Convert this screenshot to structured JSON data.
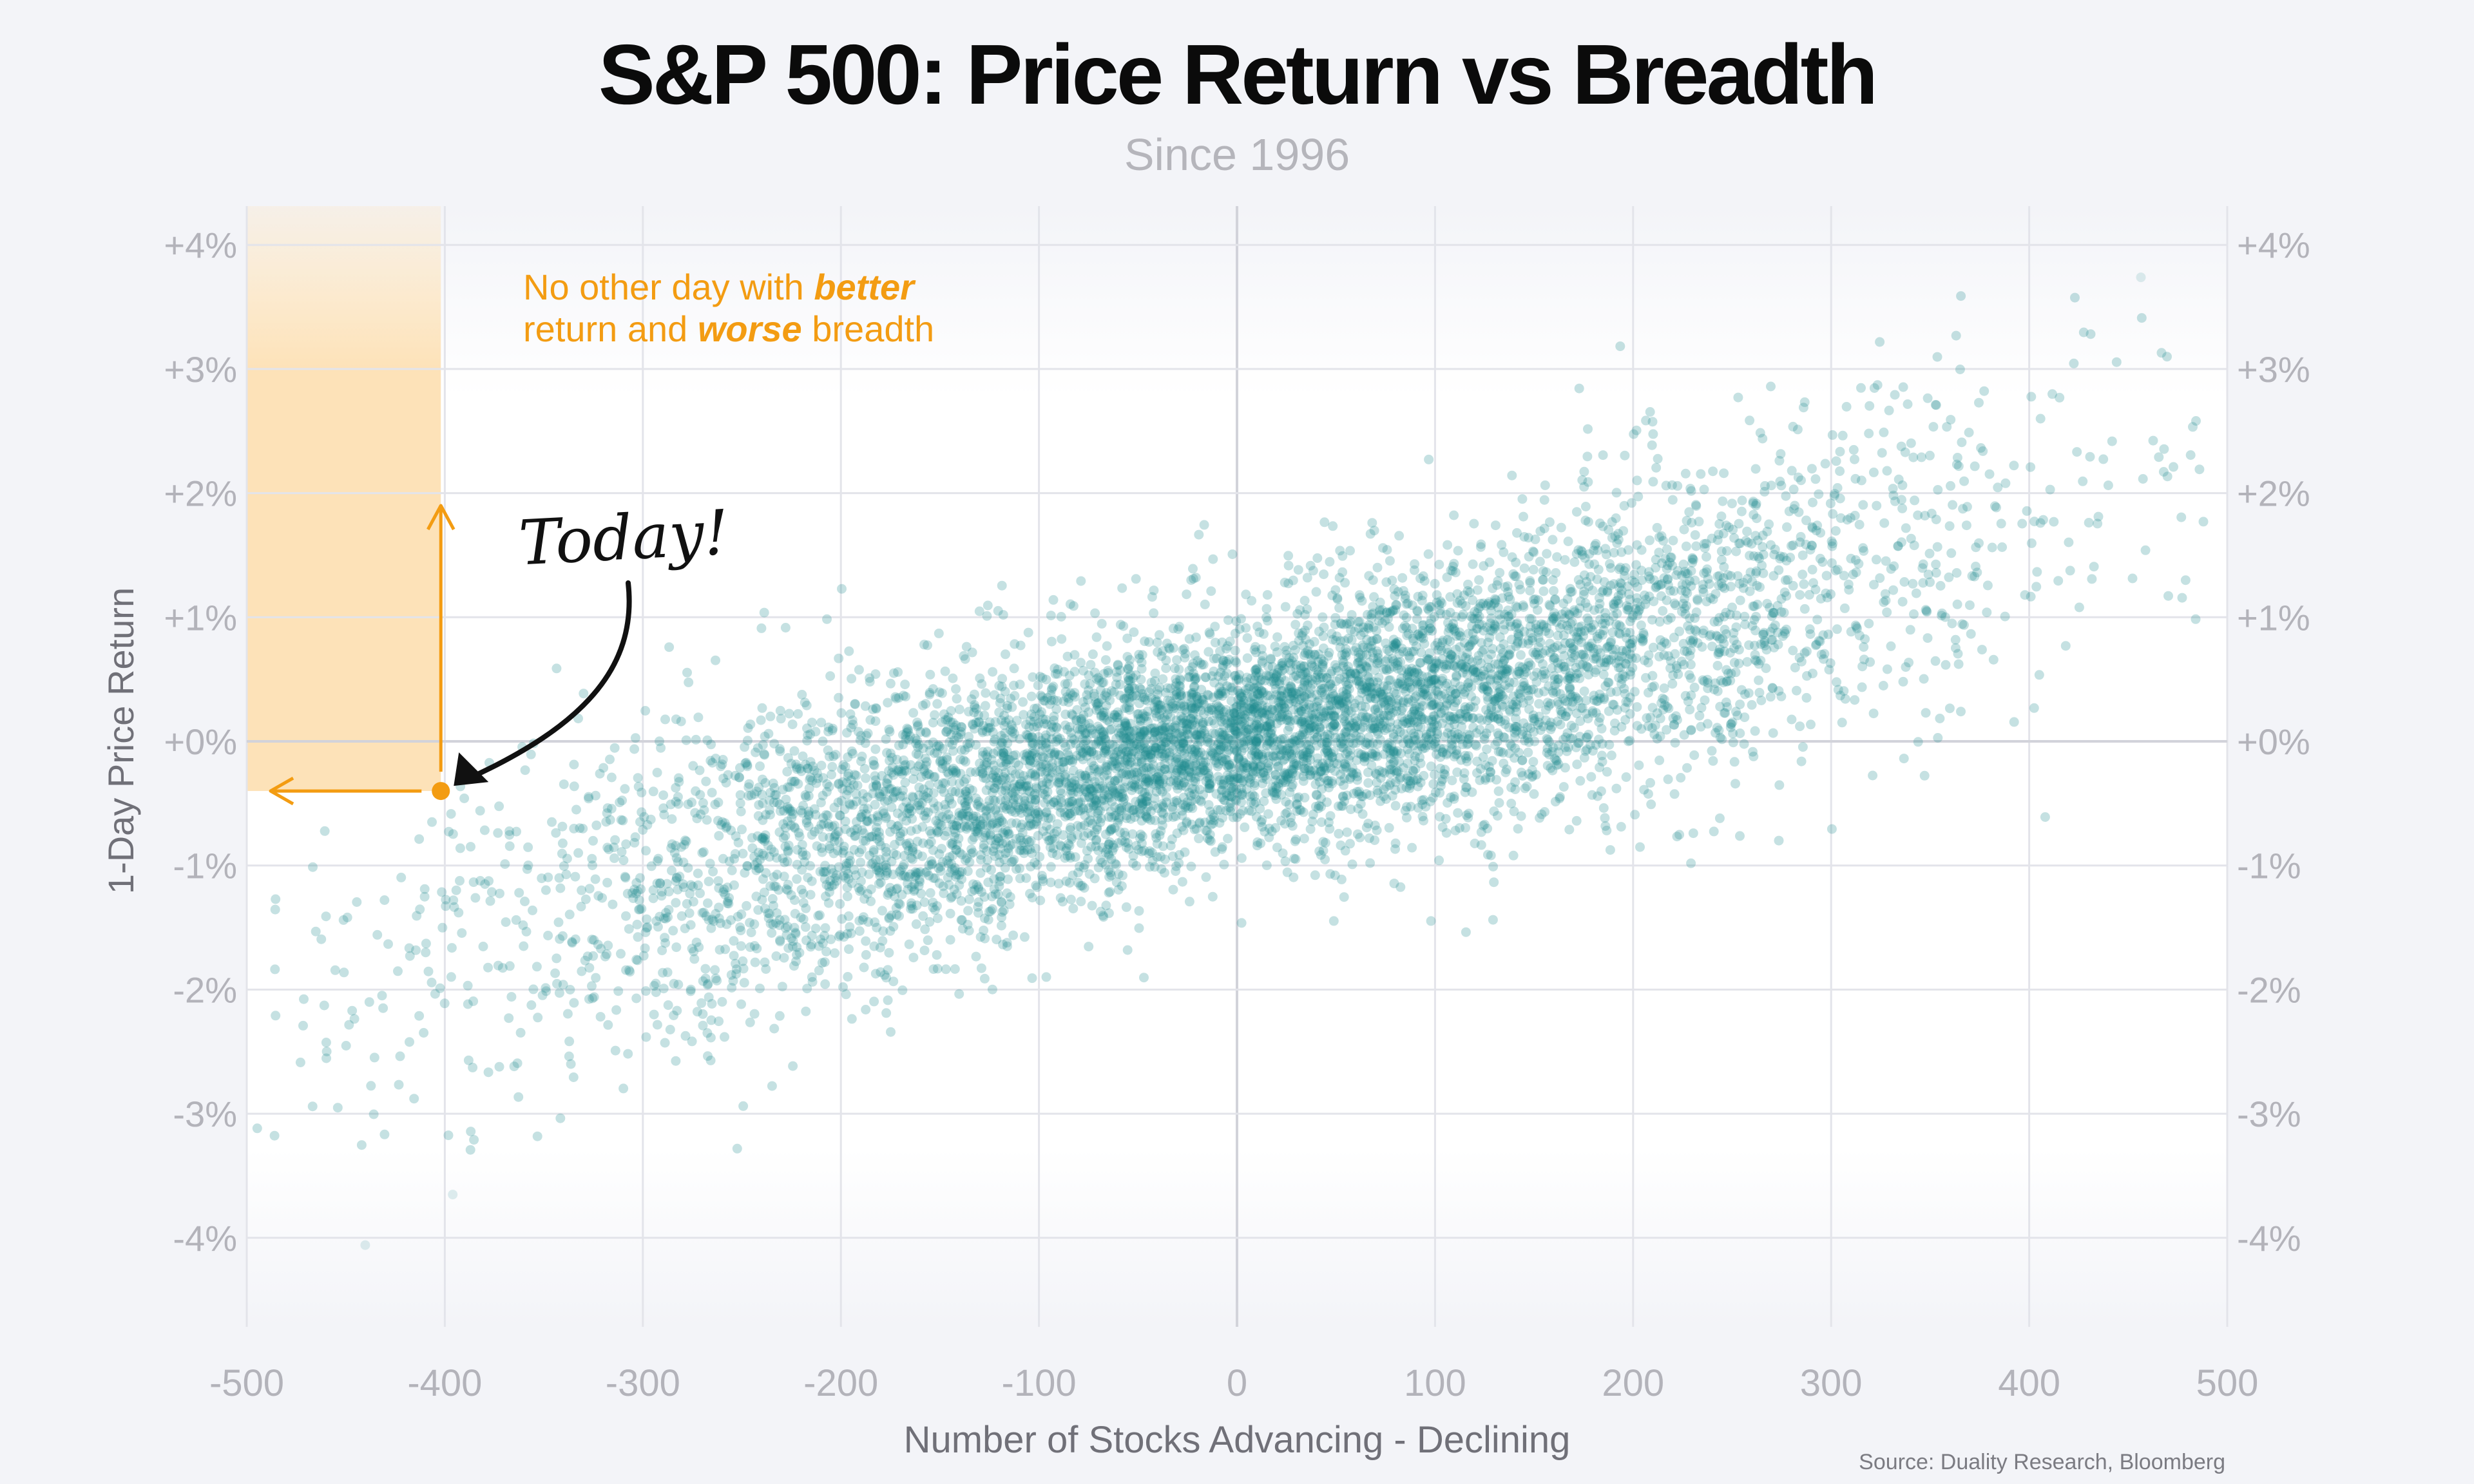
{
  "title": "S&P 500: Price Return vs Breadth",
  "subtitle": "Since 1996",
  "source": "Source: Duality Research, Bloomberg",
  "colors": {
    "points": "#1d8a8f",
    "highlight": "#f39c12",
    "shade": "#fde2b8",
    "grid": "#e3e4ea",
    "zero_line": "#d2d3da",
    "tick_text": "#b3b3ba",
    "axis_label": "#707078"
  },
  "annotation": {
    "callout_line1": "No other day with ",
    "callout_bold1": "better",
    "callout_line2_start": "return and ",
    "callout_bold2": "worse",
    "callout_line2_end": " breadth",
    "today_label": "Today!"
  },
  "chart_data": {
    "type": "scatter",
    "title": "S&P 500: Price Return vs Breadth",
    "subtitle": "Since 1996",
    "xlabel": "Number of Stocks Advancing - Declining",
    "ylabel": "1-Day Price Return",
    "xlim": [
      -500,
      500
    ],
    "ylim": [
      -4.6,
      4.3
    ],
    "x_ticks": [
      -500,
      -400,
      -300,
      -200,
      -100,
      0,
      100,
      200,
      300,
      400,
      500
    ],
    "x_tick_labels": [
      "-500",
      "-400",
      "-300",
      "-200",
      "-100",
      "0",
      "100",
      "200",
      "300",
      "400",
      "500"
    ],
    "y_ticks": [
      4,
      3,
      2,
      1,
      0,
      -1,
      -2,
      -3,
      -4
    ],
    "y_tick_labels": [
      "+4%",
      "+3%",
      "+2%",
      "+1%",
      "+0%",
      "-1%",
      "-2%",
      "-3%",
      "-4%"
    ],
    "y_tick_labels_right": [
      "+4%",
      "+3%",
      "+2%",
      "+1%",
      "+0%",
      "-1%",
      "-2%",
      "-3%",
      "-4%"
    ],
    "grid": true,
    "approximate_point_cloud": {
      "n_points": 7000,
      "relationship": "y ≈ 0.0033·x + 0.03·sign(x)·|x/100|^2 — roughly linear, return rising with breadth",
      "spread_pct": 0.42
    },
    "highlight_point": {
      "label": "Today!",
      "x": -402,
      "y": -0.4
    },
    "highlight_region": {
      "x": [
        -500,
        -402
      ],
      "y": [
        -0.4,
        4.3
      ]
    }
  }
}
